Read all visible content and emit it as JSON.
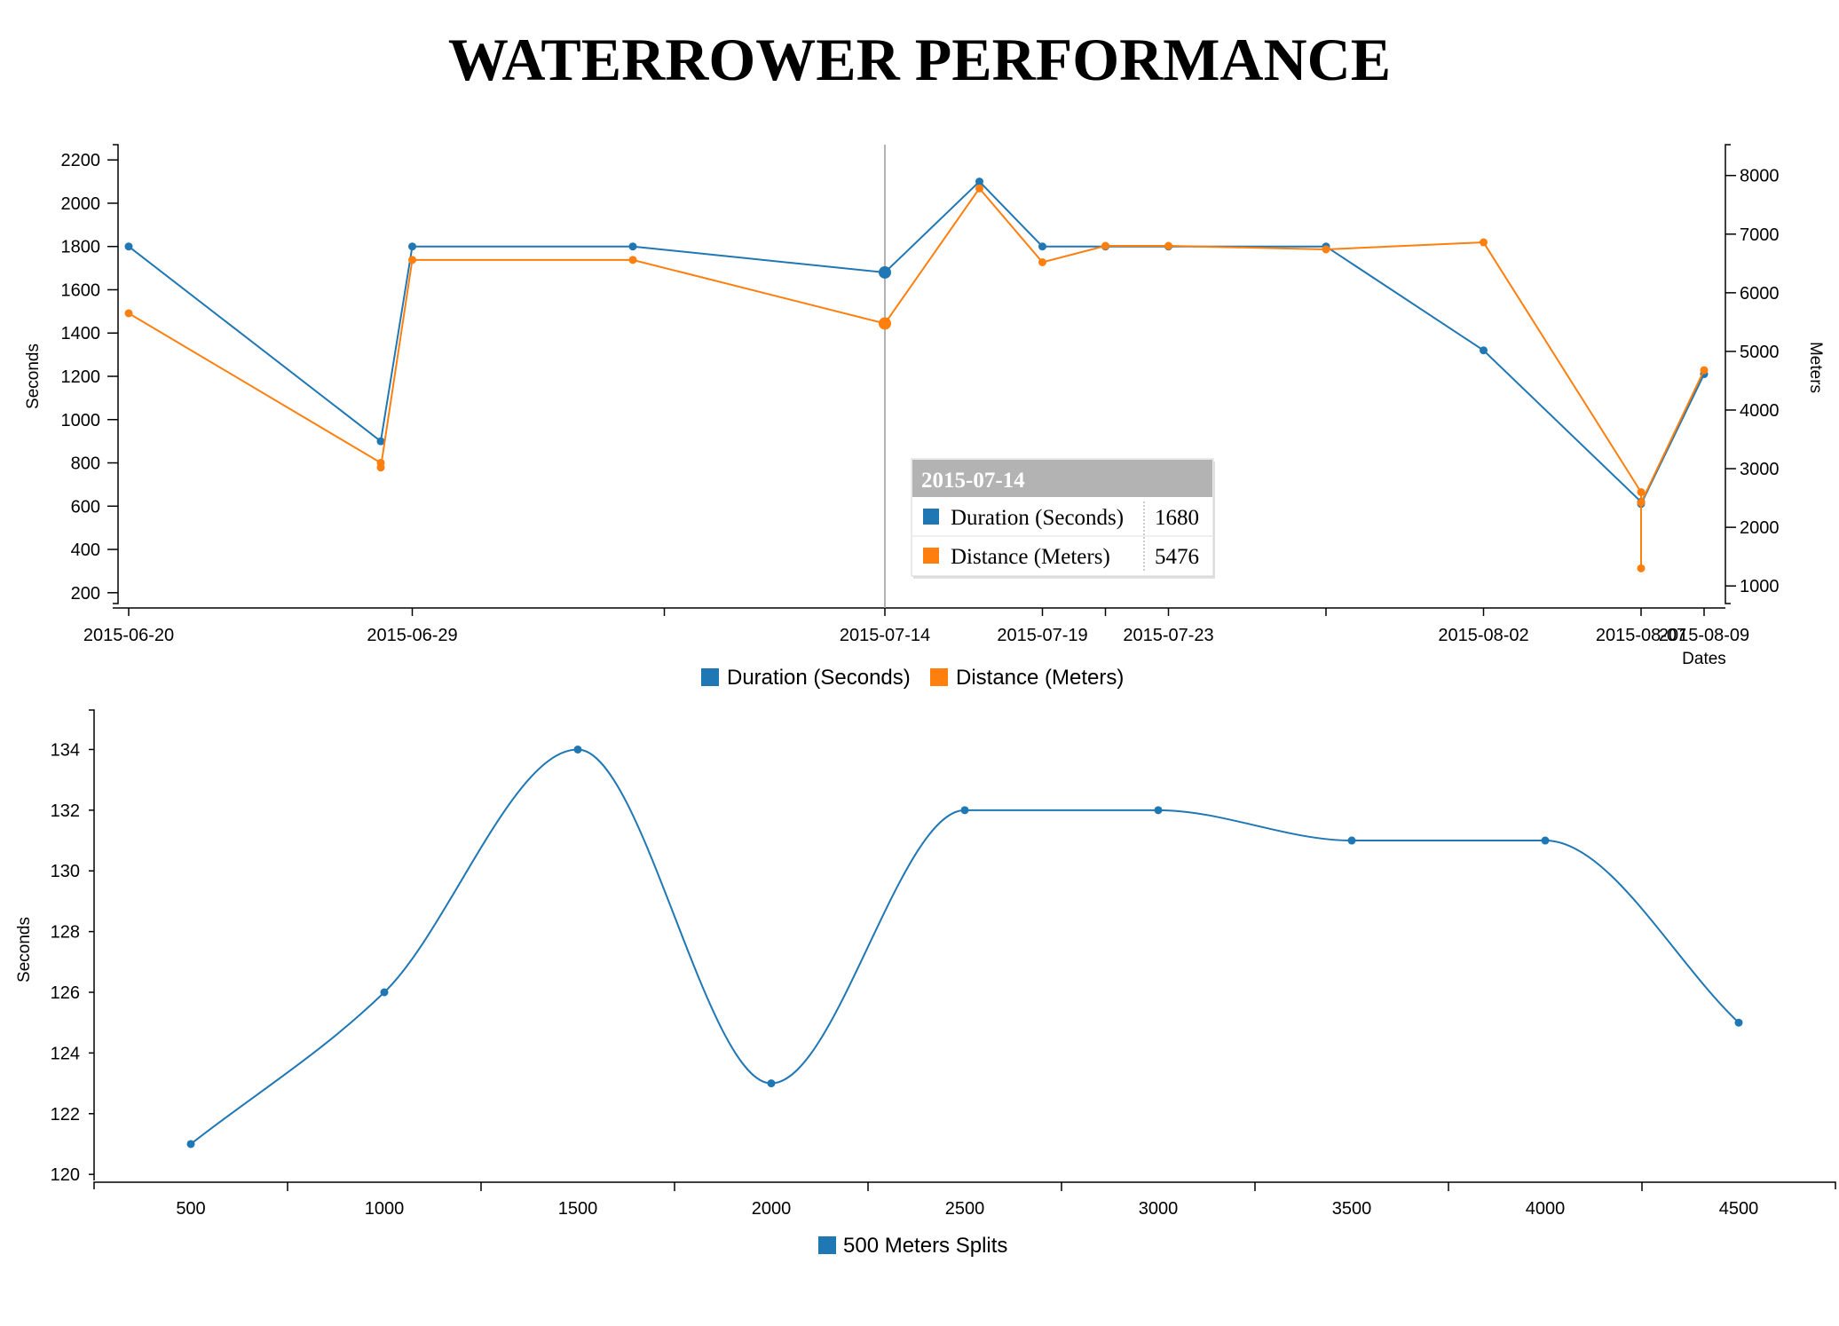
{
  "title": "WATERROWER PERFORMANCE",
  "colors": {
    "duration": "#1f77b4",
    "distance": "#ff7f0e",
    "axis": "#000000",
    "guide": "#999999",
    "tooltip_header": "#b3b3b3"
  },
  "chart_data": [
    {
      "type": "line",
      "xlabel": "Dates",
      "ylabel": "Seconds",
      "y2label": "Meters",
      "xlim": [
        "2015-06-20",
        "2015-08-09"
      ],
      "ylim": [
        150,
        2250
      ],
      "y2lim": [
        700,
        8450
      ],
      "x_ticks": [
        "2015-06-20",
        "2015-06-29",
        "2015-07-14",
        "2015-07-19",
        "2015-07-23",
        "2015-08-02",
        "2015-08-07",
        "2015-08-09"
      ],
      "x_tick_labels": [
        "2015-06-20",
        "2015-06-29",
        "2015-07-14",
        "2015-07-19",
        "2015-07-23",
        "2015-08-02",
        "2015-08-07",
        "2015-08-09"
      ],
      "x_minor_ticks": [
        "2015-07-07",
        "2015-07-21",
        "2015-07-28"
      ],
      "y_ticks": [
        200,
        400,
        600,
        800,
        1000,
        1200,
        1400,
        1600,
        1800,
        2000,
        2200
      ],
      "y2_ticks": [
        1000,
        2000,
        3000,
        4000,
        5000,
        6000,
        7000,
        8000
      ],
      "series": [
        {
          "name": "Duration (Seconds)",
          "axis": "left",
          "x": [
            "2015-06-20",
            "2015-06-28",
            "2015-06-29",
            "2015-07-06",
            "2015-07-14",
            "2015-07-17",
            "2015-07-19",
            "2015-07-21",
            "2015-07-23",
            "2015-07-28",
            "2015-08-02",
            "2015-08-07",
            "2015-08-07",
            "2015-08-09"
          ],
          "values": [
            1800,
            900,
            1800,
            1800,
            1680,
            2100,
            1800,
            1800,
            1800,
            1800,
            1320,
            620,
            610,
            1210
          ]
        },
        {
          "name": "Distance (Meters)",
          "axis": "right",
          "x": [
            "2015-06-20",
            "2015-06-28",
            "2015-06-28",
            "2015-06-29",
            "2015-07-06",
            "2015-07-14",
            "2015-07-17",
            "2015-07-19",
            "2015-07-21",
            "2015-07-23",
            "2015-07-28",
            "2015-08-02",
            "2015-08-07",
            "2015-08-07",
            "2015-08-07",
            "2015-08-09"
          ],
          "values": [
            5650,
            3100,
            3020,
            6560,
            6560,
            5476,
            7780,
            6520,
            6800,
            6800,
            6740,
            6860,
            2600,
            1300,
            2420,
            4680
          ]
        }
      ],
      "legend": [
        "Duration (Seconds)",
        "Distance (Meters)"
      ],
      "legend_position": "bottom-center",
      "tooltip": {
        "date": "2015-07-14",
        "rows": [
          {
            "label": "Duration (Seconds)",
            "value": "1680"
          },
          {
            "label": "Distance (Meters)",
            "value": "5476"
          }
        ]
      }
    },
    {
      "type": "line",
      "xlabel": "",
      "ylabel": "Seconds",
      "xlim": [
        250,
        4750
      ],
      "ylim": [
        119.8,
        135.3
      ],
      "x_ticks": [
        500,
        1000,
        1500,
        2000,
        2500,
        3000,
        3500,
        4000,
        4500
      ],
      "x_tick_labels": [
        "500",
        "1000",
        "1500",
        "2000",
        "2500",
        "3000",
        "3500",
        "4000",
        "4500"
      ],
      "y_ticks": [
        120,
        122,
        124,
        126,
        128,
        130,
        132,
        134
      ],
      "series": [
        {
          "name": "500 Meters Splits",
          "x": [
            500,
            1000,
            1500,
            2000,
            2500,
            3000,
            3500,
            4000,
            4500
          ],
          "values": [
            121,
            126,
            134,
            123,
            132,
            132,
            131,
            131,
            125
          ]
        }
      ],
      "legend": [
        "500 Meters Splits"
      ],
      "legend_position": "bottom-center"
    }
  ]
}
